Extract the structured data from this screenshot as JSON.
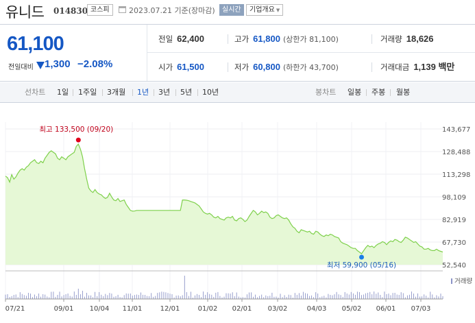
{
  "header": {
    "name": "유니드",
    "code": "014830",
    "market": "코스피",
    "date": "2023.07.21 기준(장마감)",
    "realtime_label": "실시간",
    "overview_label": "기업개요"
  },
  "summary": {
    "current_price": "61,100",
    "change_label": "전일대비",
    "change_value": "1,300",
    "change_percent": "−2.08%",
    "prev_close_label": "전일",
    "prev_close": "62,400",
    "high_label": "고가",
    "high": "61,800",
    "upper_limit": "(상한가 81,100)",
    "volume_label": "거래량",
    "volume": "18,626",
    "open_label": "시가",
    "open": "61,500",
    "low_label": "저가",
    "low": "60,800",
    "lower_limit": "(하한가 43,700)",
    "amount_label": "거래대금",
    "amount": "1,139 백만"
  },
  "tabs": {
    "line_label": "선차트",
    "line_periods": [
      "1일",
      "1주일",
      "3개월",
      "1년",
      "3년",
      "5년",
      "10년"
    ],
    "active": "1년",
    "candle_label": "봉차트",
    "candle_periods": [
      "일봉",
      "주봉",
      "월봉"
    ]
  },
  "colors": {
    "accent_blue": "#1557c4",
    "line_green": "#7ed04b",
    "area_fill": "#e6f8d6",
    "high_marker": "#e0001b",
    "low_marker": "#1a7ee8"
  },
  "chart_data": {
    "type": "area",
    "ylim": [
      52540,
      143677
    ],
    "y_ticks": [
      "143,677",
      "128,488",
      "113,298",
      "98,109",
      "82,919",
      "67,730",
      "52,540"
    ],
    "x_ticks": [
      "07/21",
      "09/01",
      "10/04",
      "11/01",
      "12/01",
      "01/02",
      "02/01",
      "03/02",
      "04/03",
      "05/02",
      "06/01",
      "07/03"
    ],
    "high_annotation": "최고 133,500 (09/20)",
    "low_annotation": "최저 59,900 (05/16)",
    "volume_label": "거래량",
    "series": [
      {
        "values": [
          112000,
          111000,
          108000,
          113000,
          110000,
          111500,
          114000,
          116000,
          117000,
          116000,
          118000,
          119000,
          121000,
          122000,
          123000,
          121000,
          120500,
          122000,
          121000,
          124000,
          126000,
          128000,
          129000,
          128000,
          127000,
          124000,
          123000,
          125000,
          124000,
          123000,
          125000,
          126000,
          127000,
          128000,
          132000,
          133500,
          130000,
          125000,
          117000,
          110000,
          104000,
          102000,
          101000,
          103000,
          101000,
          100000,
          99500,
          98000,
          97000,
          97800,
          100500,
          98000,
          96000,
          95500,
          97000,
          95000,
          95500,
          96000,
          93000,
          91000,
          89000,
          88500,
          88600,
          89000,
          89000,
          89000,
          89000,
          89000,
          89000,
          89000,
          89000,
          89000,
          89000,
          89000,
          89000,
          89000,
          89000,
          89000,
          89000,
          89000,
          89000,
          89000,
          89000,
          89000,
          89000,
          96000,
          96000,
          95800,
          95500,
          95000,
          94500,
          94000,
          93000,
          92000,
          90000,
          88000,
          87000,
          86500,
          87000,
          86000,
          84500,
          84000,
          85000,
          83500,
          83000,
          82500,
          84000,
          84500,
          84000,
          85000,
          82500,
          82000,
          83500,
          84000,
          83000,
          81500,
          82500,
          85000,
          87000,
          89000,
          88000,
          86000,
          87000,
          88500,
          87500,
          88000,
          87000,
          84500,
          83500,
          84000,
          85500,
          86000,
          85000,
          84000,
          83500,
          84000,
          82500,
          80000,
          78000,
          77000,
          75000,
          74000,
          76000,
          75500,
          75000,
          74500,
          75000,
          73500,
          73000,
          75000,
          74500,
          73000,
          72000,
          71500,
          72500,
          72000,
          73000,
          72500,
          71500,
          71000,
          70500,
          68000,
          67000,
          66500,
          66000,
          65000,
          64000,
          63500,
          63500,
          62000,
          61000,
          59900,
          62000,
          64000,
          65500,
          64500,
          65000,
          64000,
          65500,
          66500,
          67000,
          68000,
          67500,
          66000,
          67500,
          68500,
          68000,
          69500,
          69000,
          68000,
          67500,
          69000,
          71000,
          70500,
          69500,
          68500,
          67500,
          68000,
          66500,
          65000,
          64500,
          63000,
          63000,
          63500,
          62500,
          62000,
          62000,
          63000,
          62000,
          61500,
          61100
        ]
      }
    ]
  }
}
